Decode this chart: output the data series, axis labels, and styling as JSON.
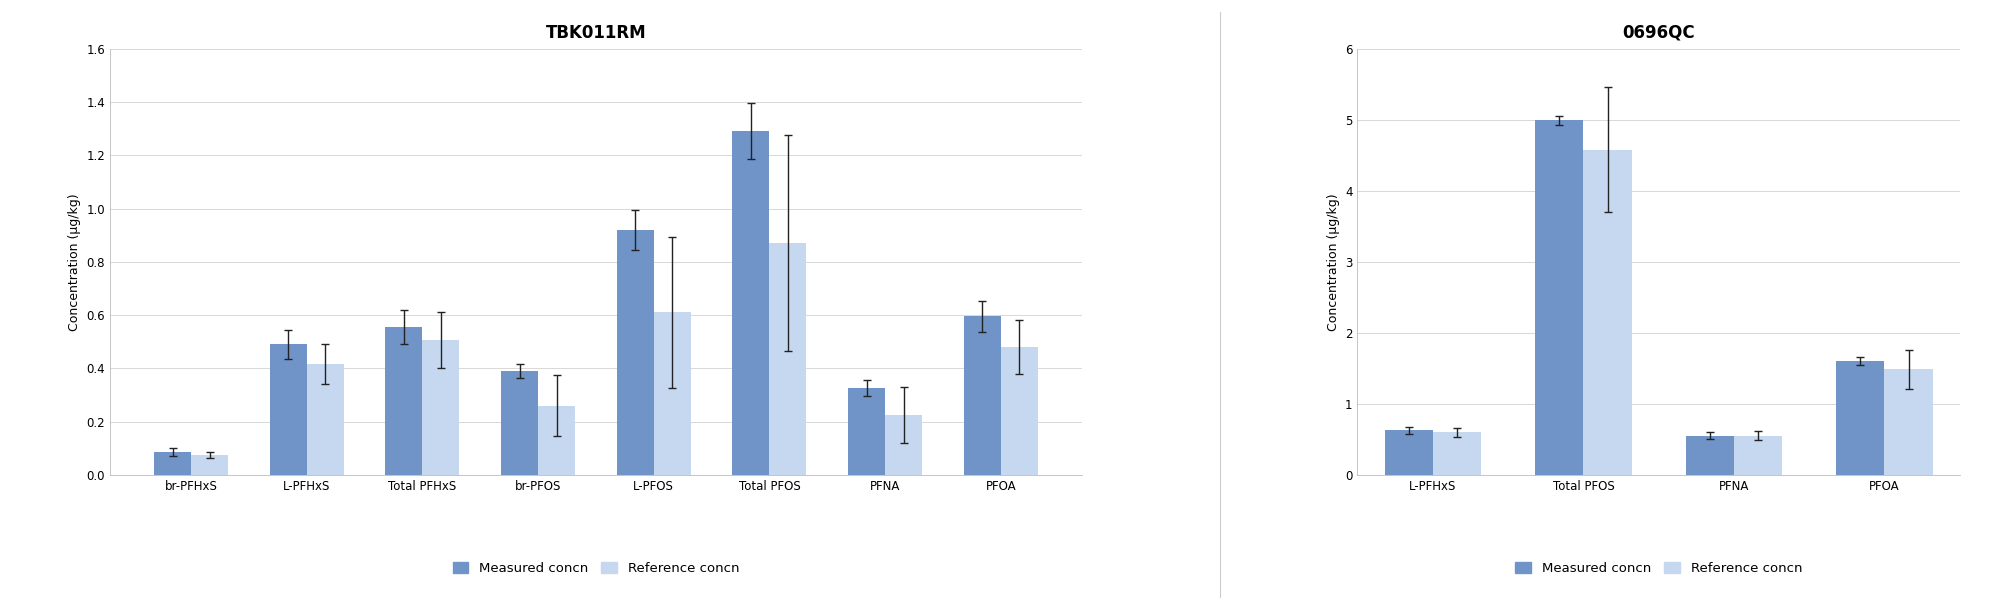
{
  "tbk": {
    "title": "TBK011RM",
    "categories": [
      "br-PFHxS",
      "L-PFHxS",
      "Total PFHxS",
      "br-PFOS",
      "L-PFOS",
      "Total PFOS",
      "PFNA",
      "PFOA"
    ],
    "measured": [
      0.085,
      0.49,
      0.555,
      0.39,
      0.92,
      1.29,
      0.325,
      0.595
    ],
    "reference": [
      0.075,
      0.415,
      0.505,
      0.26,
      0.61,
      0.87,
      0.225,
      0.48
    ],
    "measured_err": [
      0.015,
      0.055,
      0.065,
      0.025,
      0.075,
      0.105,
      0.03,
      0.06
    ],
    "reference_err": [
      0.01,
      0.075,
      0.105,
      0.115,
      0.285,
      0.405,
      0.105,
      0.1
    ],
    "ylabel": "Concentration (μg/kg)",
    "ylim": [
      0,
      1.6
    ],
    "yticks": [
      0.0,
      0.2,
      0.4,
      0.6,
      0.8,
      1.0,
      1.2,
      1.4,
      1.6
    ]
  },
  "qc": {
    "title": "0696QC",
    "categories": [
      "L-PFHxS",
      "Total PFOS",
      "PFNA",
      "PFOA"
    ],
    "measured": [
      0.63,
      4.99,
      0.555,
      1.6
    ],
    "reference": [
      0.6,
      4.58,
      0.555,
      1.49
    ],
    "measured_err": [
      0.05,
      0.06,
      0.05,
      0.055
    ],
    "reference_err": [
      0.065,
      0.88,
      0.065,
      0.275
    ],
    "ylabel": "Concentration (μg/kg)",
    "ylim": [
      0,
      6.0
    ],
    "yticks": [
      0.0,
      1.0,
      2.0,
      3.0,
      4.0,
      5.0,
      6.0
    ]
  },
  "measured_color": "#7094c8",
  "reference_color": "#c5d8ef",
  "bar_width": 0.32,
  "error_color": "#222222",
  "background_color": "#ffffff",
  "title_fontsize": 12,
  "axis_label_fontsize": 9,
  "tick_fontsize": 8.5,
  "legend_fontsize": 9.5,
  "grid_color": "#d8d8d8"
}
